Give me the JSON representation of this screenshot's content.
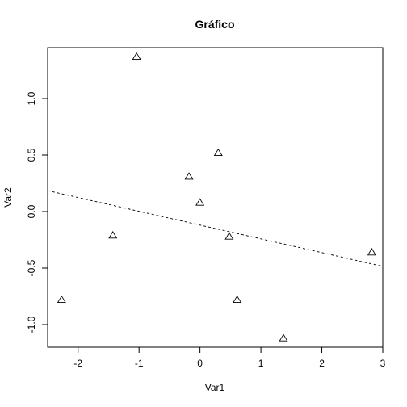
{
  "chart_data": {
    "type": "scatter",
    "title": "Gráfico",
    "xlabel": "Var1",
    "ylabel": "Var2",
    "xlim": [
      -2.5,
      3.0
    ],
    "ylim": [
      -1.2,
      1.45
    ],
    "x_ticks": [
      -2,
      -1,
      0,
      1,
      2,
      3
    ],
    "x_tick_labels": [
      "-2",
      "-1",
      "0",
      "1",
      "2",
      "3"
    ],
    "y_ticks": [
      -1.0,
      -0.5,
      0.0,
      0.5,
      1.0
    ],
    "y_tick_labels": [
      "-1.0",
      "-0.5",
      "0.0",
      "0.5",
      "1.0"
    ],
    "marker": "triangle-open",
    "grid": false,
    "series": [
      {
        "points": [
          {
            "x": -2.27,
            "y": -0.78
          },
          {
            "x": -1.43,
            "y": -0.21
          },
          {
            "x": -1.04,
            "y": 1.37
          },
          {
            "x": -0.18,
            "y": 0.31
          },
          {
            "x": 0.0,
            "y": 0.08
          },
          {
            "x": 0.3,
            "y": 0.52
          },
          {
            "x": 0.48,
            "y": -0.22
          },
          {
            "x": 0.61,
            "y": -0.78
          },
          {
            "x": 1.37,
            "y": -1.12
          },
          {
            "x": 2.82,
            "y": -0.36
          }
        ]
      }
    ],
    "regression_line": {
      "style": "dashed",
      "x": [
        -2.5,
        3.0
      ],
      "y": [
        0.185,
        -0.485
      ]
    }
  }
}
